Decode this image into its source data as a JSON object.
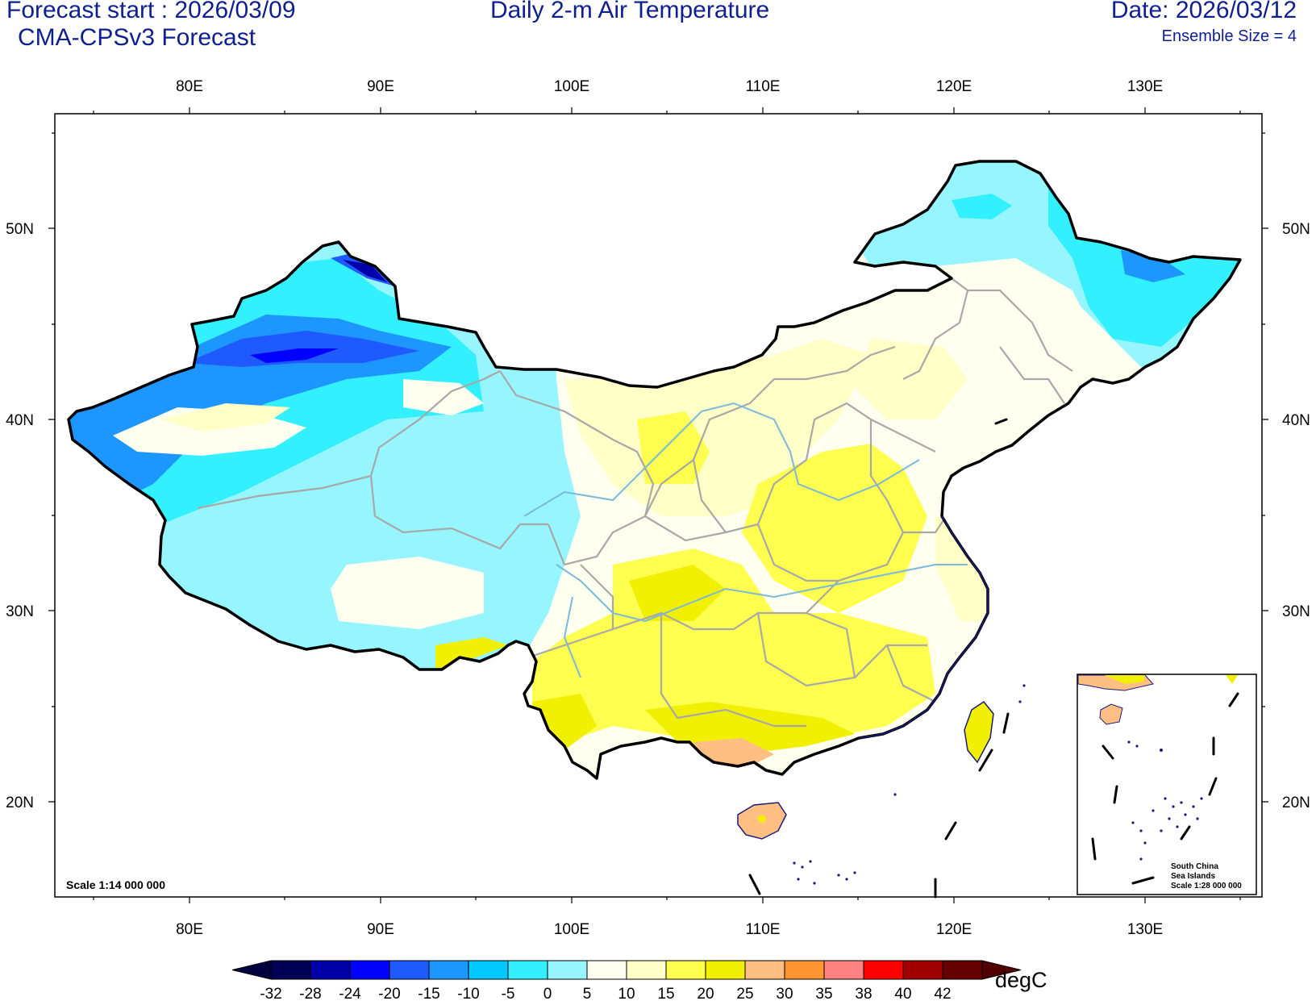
{
  "header": {
    "forecast_start": "Forecast start : 2026/03/09",
    "model": "CMA-CPSv3 Forecast",
    "title": "Daily 2-m Air Temperature",
    "date": "Date: 2026/03/12",
    "ensemble": "Ensemble Size = 4"
  },
  "map": {
    "lon_labels": [
      "80E",
      "90E",
      "100E",
      "110E",
      "120E",
      "130E"
    ],
    "lat_labels": [
      "50N",
      "40N",
      "30N",
      "20N"
    ],
    "scale_main": "Scale 1:14 000 000",
    "inset": {
      "line1": "South China",
      "line2": "Sea Islands",
      "line3": "Scale 1:28 000 000"
    },
    "colors": {
      "border": "#000000",
      "province": "#a8a8a8",
      "river": "#7ab8dc",
      "coast": "#1a1a80"
    }
  },
  "legend": {
    "unit": "degC",
    "ticks": [
      "-32",
      "-28",
      "-24",
      "-20",
      "-15",
      "-10",
      "-5",
      "0",
      "5",
      "10",
      "15",
      "20",
      "25",
      "30",
      "35",
      "38",
      "40",
      "42"
    ],
    "colors": [
      "#000055",
      "#0000a8",
      "#0000ff",
      "#1e5aff",
      "#1e96ff",
      "#00c8ff",
      "#33f0ff",
      "#96f5ff",
      "#fffff0",
      "#ffffc8",
      "#ffff50",
      "#f0f000",
      "#ffbe82",
      "#ff9632",
      "#ff8282",
      "#ff0000",
      "#a00000",
      "#640000"
    ],
    "low_end_color": "#000040",
    "high_end_color": "#500000"
  }
}
